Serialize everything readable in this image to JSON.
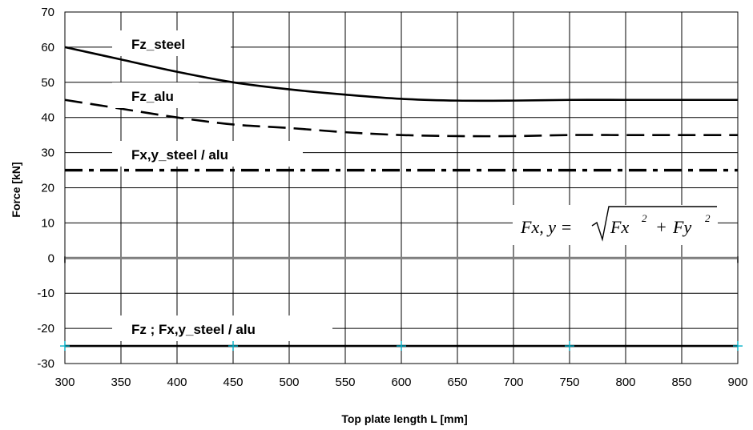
{
  "chart_data": {
    "type": "line",
    "title": "",
    "xlabel": "Top plate length L [mm]",
    "ylabel": "Force [kN]",
    "xlim": [
      300,
      900
    ],
    "ylim": [
      -30,
      70
    ],
    "x_ticks": [
      300,
      350,
      400,
      450,
      500,
      550,
      600,
      650,
      700,
      750,
      800,
      850,
      900
    ],
    "y_ticks": [
      70,
      60,
      50,
      40,
      30,
      20,
      10,
      0,
      -10,
      -20,
      -30
    ],
    "grid": true,
    "series": [
      {
        "label": "Fz_steel",
        "line_style": "solid",
        "x": [
          300,
          350,
          400,
          450,
          500,
          550,
          600,
          650,
          700,
          750,
          800,
          850,
          900
        ],
        "y": [
          60,
          56.5,
          53,
          50,
          48,
          46.5,
          45.3,
          44.8,
          44.8,
          45,
          45,
          45,
          45
        ]
      },
      {
        "label": "Fz_alu",
        "line_style": "dashed",
        "x": [
          300,
          350,
          400,
          450,
          500,
          550,
          600,
          650,
          700,
          750,
          800,
          850,
          900
        ],
        "y": [
          45,
          42.5,
          40,
          38,
          37,
          35.8,
          35,
          34.7,
          34.7,
          35,
          35,
          35,
          35
        ]
      },
      {
        "label": "Fx,y_steel / alu",
        "line_style": "dash-dot",
        "x": [
          300,
          900
        ],
        "y": [
          25,
          25
        ]
      },
      {
        "label": "Fz ; Fx,y_steel / alu",
        "line_style": "solid-markers",
        "x": [
          300,
          450,
          600,
          750,
          900
        ],
        "y": [
          -25,
          -25,
          -25,
          -25,
          -25
        ]
      }
    ],
    "annotation": {
      "lhs": "Fx, y =",
      "radicand_a": "Fx",
      "radicand_b": "Fy",
      "exponent": "2",
      "operator": "+"
    },
    "colors": {
      "lines": "#000000",
      "grid": "#000000",
      "zero_line": "#7f7f7f",
      "markers": "#00b0c8"
    }
  }
}
